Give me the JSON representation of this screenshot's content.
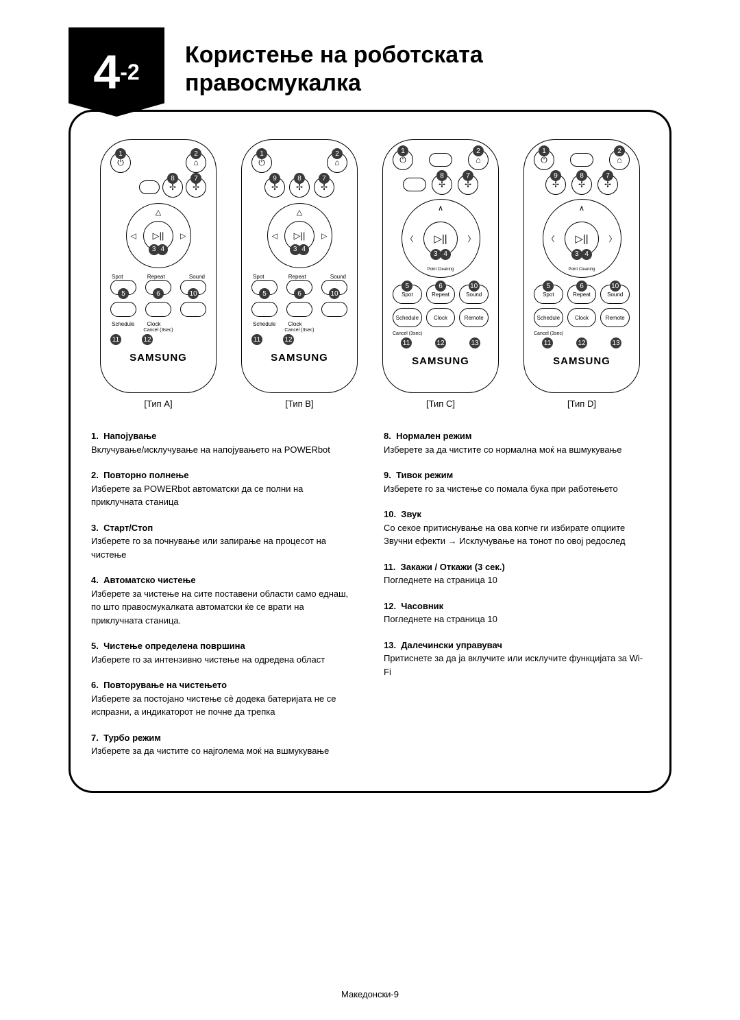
{
  "header": {
    "section_big": "4",
    "section_small": "-2",
    "title_line1": "Користење на роботската",
    "title_line2": "правосмукалка"
  },
  "remotes": {
    "typeA": {
      "label": "[Тип A]"
    },
    "typeB": {
      "label": "[Тип B]"
    },
    "typeC": {
      "label": "[Тип C]"
    },
    "typeD": {
      "label": "[Тип D]"
    }
  },
  "btn_labels": {
    "spot": "Spot",
    "repeat": "Repeat",
    "sound": "Sound",
    "schedule": "Schedule",
    "clock": "Clock",
    "remote": "Remote",
    "cancel3": "Cancel (3sec)",
    "point": "Point Cleaning"
  },
  "brand": "SAMSUNG",
  "badge_nums": {
    "n1": "1",
    "n2": "2",
    "n3": "3",
    "n4": "4",
    "n5": "5",
    "n6": "6",
    "n7": "7",
    "n8": "8",
    "n9": "9",
    "n10": "10",
    "n11": "11",
    "n12": "12",
    "n13": "13"
  },
  "icons": {
    "power": "⏻",
    "home": "⌂",
    "fan": "✢",
    "play": "▷",
    "playpause": "▷||",
    "chev_up": "∧",
    "chev_down": "∨",
    "chev_left": "〈",
    "chev_right": "〉",
    "tri_up": "△",
    "tri_left": "◁",
    "tri_right": "▷"
  },
  "desc_left": [
    {
      "num": "1.",
      "title": "Напојување",
      "body": "Вклучување/исклучување на напојувањето на POWERbot"
    },
    {
      "num": "2.",
      "title": "Повторно полнење",
      "body": "Изберете за POWERbot автоматски да се полни на приклучната станица"
    },
    {
      "num": "3.",
      "title": "Старт/Стоп",
      "body": "Изберете го за почнување или запирање на процесот на чистење"
    },
    {
      "num": "4.",
      "title": "Автоматско чистење",
      "body": "Изберете за чистење на сите поставени области само еднаш, по што правосмукалката автоматски ќе се врати на приклучната станица."
    },
    {
      "num": "5.",
      "title": "Чистење определена површина",
      "body": "Изберете го за интензивно чистење на одредена област"
    },
    {
      "num": "6.",
      "title": "Повторување на чистењето",
      "body": "Изберете за постојано чистење сè додека батеријата не се испразни, а индикаторот не почне да трепка"
    },
    {
      "num": "7.",
      "title": "Турбо режим",
      "body": "Изберете за да чистите со најголема моќ на вшмукување"
    }
  ],
  "desc_right": [
    {
      "num": "8.",
      "title": "Нормален режим",
      "body": "Изберете за да чистите со нормална моќ на вшмукување"
    },
    {
      "num": "9.",
      "title": "Тивок режим",
      "body": "Изберете го за чистење со помала бука при работењето"
    },
    {
      "num": "10.",
      "title": "Звук",
      "body": "Со секое притиснување на ова копче ги избирате опциите Звучни ефекти → Исклучување на тонот по овој редослед"
    },
    {
      "num": "11.",
      "title": "Закажи / Откажи (3 сек.)",
      "body": "Погледнете на страница 10"
    },
    {
      "num": "12.",
      "title": "Часовник",
      "body": "Погледнете на страница 10"
    },
    {
      "num": "13.",
      "title": "Далечински управувач",
      "body": "Притиснете за да ја вклучите или исклучите функцијата за Wi-Fi"
    }
  ],
  "footer": "Македонски-9"
}
